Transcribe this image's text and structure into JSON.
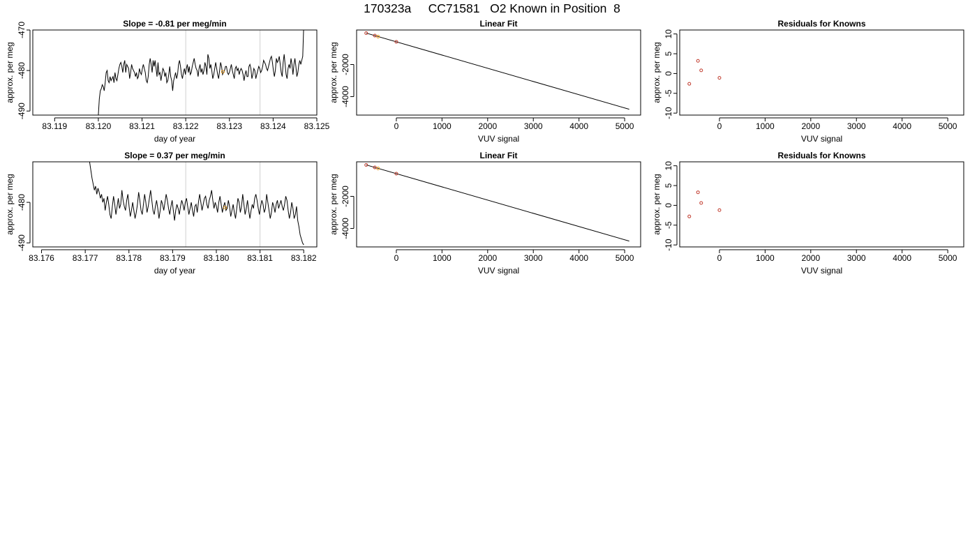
{
  "page": {
    "title": "170323a     CC71581   O2 Known in Position  8"
  },
  "chart_data": [
    {
      "type": "line",
      "title": "Slope =  -0.81  per meg/min",
      "xlabel": "day of year",
      "ylabel": "approx. per meg",
      "xlim": [
        83.1185,
        83.125
      ],
      "ylim": [
        -491,
        -470
      ],
      "x_ticks": [
        83.119,
        83.12,
        83.121,
        83.122,
        83.123,
        83.124,
        83.125
      ],
      "x_tick_labels": [
        "83.119",
        "83.120",
        "83.121",
        "83.122",
        "83.123",
        "83.124",
        "83.125"
      ],
      "y_ticks": [
        -490,
        -480,
        -470
      ],
      "y_tick_labels": [
        "-490",
        "-480",
        "-470"
      ],
      "vlines": [
        83.122,
        83.1237
      ],
      "series": [
        {
          "color": "#000000",
          "x_start": 83.12,
          "x_end": 83.1247,
          "values": [
            -491,
            -487,
            -485,
            -484.5,
            -483.5,
            -484,
            -485,
            -483,
            -480.5,
            -480,
            -482.5,
            -483,
            -481.5,
            -482.5,
            -482,
            -481.5,
            -483,
            -480.5,
            -482,
            -482.5,
            -481,
            -479.5,
            -478.5,
            -478,
            -479,
            -480.5,
            -478.5,
            -477.5,
            -480.5,
            -478.5,
            -479,
            -479.5,
            -482,
            -480.5,
            -478.5,
            -479.5,
            -480,
            -480.5,
            -481.5,
            -480.5,
            -482,
            -481.5,
            -479.5,
            -480.5,
            -481,
            -479.5,
            -478.5,
            -479.5,
            -480.5,
            -482.5,
            -483,
            -481.5,
            -478.5,
            -477,
            -478.5,
            -480.5,
            -477.5,
            -479,
            -477.5,
            -479.5,
            -481.5,
            -478,
            -481,
            -480.5,
            -482.5,
            -481,
            -479.5,
            -480,
            -481.5,
            -480.5,
            -483,
            -482.5,
            -481,
            -479,
            -481.5,
            -482.5,
            -485,
            -482.5,
            -481.5,
            -480.5,
            -482,
            -481,
            -478.5,
            -477.5,
            -479,
            -481,
            -482,
            -480.5,
            -479.5,
            -481,
            -479.5,
            -478.5,
            -480.5,
            -479,
            -481,
            -480.5,
            -479,
            -478,
            -477,
            -478.5,
            -479.5,
            -480,
            -481.5,
            -479.5,
            -478.5,
            -480.5,
            -479.5,
            -481,
            -480,
            -478,
            -479,
            -481,
            -476,
            -477,
            -479.5,
            -478.5,
            -480,
            -482,
            -481,
            -479.5,
            -478,
            -479.5,
            -481,
            -482,
            -480,
            -478,
            -479,
            -481,
            -480.5,
            -480,
            -479,
            -479,
            -480.5,
            -481,
            -480.5,
            -479.5,
            -478.5,
            -480,
            -481,
            -482,
            -479.5,
            -479,
            -480,
            -479.5,
            -481,
            -480,
            -479.5,
            -480,
            -481,
            -482.5,
            -481,
            -480,
            -481.5,
            -481.5,
            -479,
            -478.5,
            -479.5,
            -482,
            -481,
            -479.5,
            -480,
            -482,
            -481,
            -480,
            -479,
            -479.5,
            -480.5,
            -480,
            -479,
            -477.5,
            -478,
            -478.5,
            -479.5,
            -480,
            -479,
            -478,
            -477,
            -476.5,
            -478,
            -480,
            -481.5,
            -480,
            -477,
            -478,
            -477.5,
            -476.5,
            -478.5,
            -480.5,
            -481.5,
            -478,
            -476,
            -478.5,
            -481,
            -482,
            -479.5,
            -478.5,
            -479.5,
            -477,
            -478.5,
            -481,
            -478.5,
            -477,
            -479,
            -481.5,
            -480.5,
            -478.5,
            -477.5,
            -478.5,
            -477.5,
            -476.5,
            -469
          ]
        }
      ],
      "points": [
        {
          "x": 83.12285,
          "y": -480.3,
          "color": "#e69a20"
        }
      ]
    },
    {
      "type": "scatter",
      "title": "Linear Fit",
      "xlabel": "VUV signal",
      "ylabel": "approx. per meg",
      "xlim": [
        -870,
        5350
      ],
      "ylim": [
        -5150,
        150
      ],
      "x_ticks": [
        0,
        1000,
        2000,
        3000,
        4000,
        5000
      ],
      "x_tick_labels": [
        "0",
        "1000",
        "2000",
        "3000",
        "4000",
        "5000"
      ],
      "y_ticks": [
        -4000,
        -2000
      ],
      "y_tick_labels": [
        "-4000",
        "-2000"
      ],
      "fit_line": {
        "x": [
          -660,
          5100
        ],
        "y": [
          -43,
          -4786
        ]
      },
      "points": [
        {
          "x": -660,
          "y": -45,
          "color": "#c0392b"
        },
        {
          "x": -470,
          "y": -200,
          "color": "#c0392b"
        },
        {
          "x": -400,
          "y": -260,
          "color": "#e69a20"
        },
        {
          "x": 0,
          "y": -590,
          "color": "#c0392b"
        }
      ]
    },
    {
      "type": "scatter",
      "title": "Residuals for Knowns",
      "xlabel": "VUV signal",
      "ylabel": "approx. per meg",
      "xlim": [
        -870,
        5350
      ],
      "ylim": [
        -10.5,
        11
      ],
      "x_ticks": [
        0,
        1000,
        2000,
        3000,
        4000,
        5000
      ],
      "x_tick_labels": [
        "0",
        "1000",
        "2000",
        "3000",
        "4000",
        "5000"
      ],
      "y_ticks": [
        -10,
        -5,
        0,
        5,
        10
      ],
      "y_tick_labels": [
        "-10",
        "-5",
        "0",
        "5",
        "10"
      ],
      "points": [
        {
          "x": -660,
          "y": -2.6,
          "color": "#c0392b"
        },
        {
          "x": -470,
          "y": 3.2,
          "color": "#c0392b"
        },
        {
          "x": -400,
          "y": 0.8,
          "color": "#c0392b"
        },
        {
          "x": 0,
          "y": -1.1,
          "color": "#c0392b"
        }
      ]
    },
    {
      "type": "line",
      "title": "Slope =  0.37  per meg/min",
      "xlabel": "day of year",
      "ylabel": "approx. per meg",
      "xlim": [
        83.1758,
        83.1823
      ],
      "ylim": [
        -491,
        -470
      ],
      "x_ticks": [
        83.176,
        83.177,
        83.178,
        83.179,
        83.18,
        83.181,
        83.182
      ],
      "x_tick_labels": [
        "83.176",
        "83.177",
        "83.178",
        "83.179",
        "83.180",
        "83.181",
        "83.182"
      ],
      "y_ticks": [
        -490,
        -480
      ],
      "y_tick_labels": [
        "-490",
        "-480"
      ],
      "vlines": [
        83.1793,
        83.181
      ],
      "series": [
        {
          "color": "#000000",
          "x_start": 83.1771,
          "x_end": 83.182,
          "values": [
            -470,
            -472,
            -474,
            -475.5,
            -477,
            -476,
            -478,
            -476.5,
            -477.5,
            -479,
            -478,
            -480,
            -479,
            -482,
            -480,
            -478.5,
            -480.5,
            -483,
            -484,
            -481,
            -478.5,
            -480.5,
            -483,
            -481,
            -479,
            -481.5,
            -480.5,
            -477,
            -479.5,
            -481,
            -482,
            -479.5,
            -478,
            -481,
            -483.5,
            -482,
            -480,
            -482,
            -484,
            -482.5,
            -480.5,
            -477.5,
            -479.5,
            -482,
            -483,
            -480.5,
            -478,
            -480,
            -482.5,
            -481,
            -479,
            -477,
            -479.5,
            -482,
            -483,
            -481,
            -479.5,
            -481.5,
            -484,
            -482,
            -479.5,
            -480.5,
            -482,
            -480,
            -478,
            -479.5,
            -481.5,
            -483,
            -481,
            -479.5,
            -482,
            -484.5,
            -482,
            -480.5,
            -481.5,
            -483,
            -481,
            -479.5,
            -480.5,
            -482,
            -480,
            -479,
            -481,
            -483,
            -481.5,
            -480,
            -482,
            -483.5,
            -481,
            -480.5,
            -482.5,
            -480,
            -478,
            -480,
            -482,
            -480.5,
            -479,
            -478.5,
            -480.5,
            -481.5,
            -479.5,
            -478.5,
            -477,
            -479.5,
            -481.5,
            -480,
            -481,
            -482.5,
            -480,
            -478.5,
            -480.5,
            -482.5,
            -481,
            -480,
            -482,
            -481.5,
            -479.5,
            -481,
            -483.5,
            -482,
            -480.5,
            -482.5,
            -484,
            -481.5,
            -479,
            -480,
            -482.5,
            -481,
            -478,
            -480.5,
            -483,
            -481.5,
            -479.5,
            -482,
            -484,
            -482,
            -480.5,
            -481.5,
            -479,
            -478,
            -479.5,
            -481.5,
            -483,
            -481,
            -479.5,
            -480.5,
            -482.5,
            -481.5,
            -478,
            -480,
            -482,
            -484,
            -482.5,
            -480,
            -481,
            -482.5,
            -480.5,
            -479.5,
            -481.5,
            -480.5,
            -479.5,
            -481,
            -482,
            -480.5,
            -478.5,
            -479.5,
            -482,
            -484,
            -482.5,
            -480,
            -481.5,
            -484,
            -483,
            -481,
            -484.5,
            -486,
            -488,
            -489,
            -490,
            -490.5
          ]
        }
      ],
      "points": [
        {
          "x": 83.1802,
          "y": -481.3,
          "color": "#e69a20"
        }
      ]
    },
    {
      "type": "scatter",
      "title": "Linear Fit",
      "xlabel": "VUV signal",
      "ylabel": "approx. per meg",
      "xlim": [
        -870,
        5350
      ],
      "ylim": [
        -5150,
        150
      ],
      "x_ticks": [
        0,
        1000,
        2000,
        3000,
        4000,
        5000
      ],
      "x_tick_labels": [
        "0",
        "1000",
        "2000",
        "3000",
        "4000",
        "5000"
      ],
      "y_ticks": [
        -4000,
        -2000
      ],
      "y_tick_labels": [
        "-4000",
        "-2000"
      ],
      "fit_line": {
        "x": [
          -660,
          5100
        ],
        "y": [
          -43,
          -4786
        ]
      },
      "points": [
        {
          "x": -660,
          "y": -45,
          "color": "#c0392b"
        },
        {
          "x": -470,
          "y": -200,
          "color": "#c0392b"
        },
        {
          "x": -400,
          "y": -260,
          "color": "#e69a20"
        },
        {
          "x": 0,
          "y": -590,
          "color": "#c0392b"
        }
      ]
    },
    {
      "type": "scatter",
      "title": "Residuals for Knowns",
      "xlabel": "VUV signal",
      "ylabel": "approx. per meg",
      "xlim": [
        -870,
        5350
      ],
      "ylim": [
        -10.5,
        11
      ],
      "x_ticks": [
        0,
        1000,
        2000,
        3000,
        4000,
        5000
      ],
      "x_tick_labels": [
        "0",
        "1000",
        "2000",
        "3000",
        "4000",
        "5000"
      ],
      "y_ticks": [
        -10,
        -5,
        0,
        5,
        10
      ],
      "y_tick_labels": [
        "-10",
        "-5",
        "0",
        "5",
        "10"
      ],
      "points": [
        {
          "x": -660,
          "y": -2.8,
          "color": "#c0392b"
        },
        {
          "x": -470,
          "y": 3.3,
          "color": "#c0392b"
        },
        {
          "x": -400,
          "y": 0.6,
          "color": "#c0392b"
        },
        {
          "x": 0,
          "y": -1.2,
          "color": "#c0392b"
        }
      ]
    }
  ]
}
